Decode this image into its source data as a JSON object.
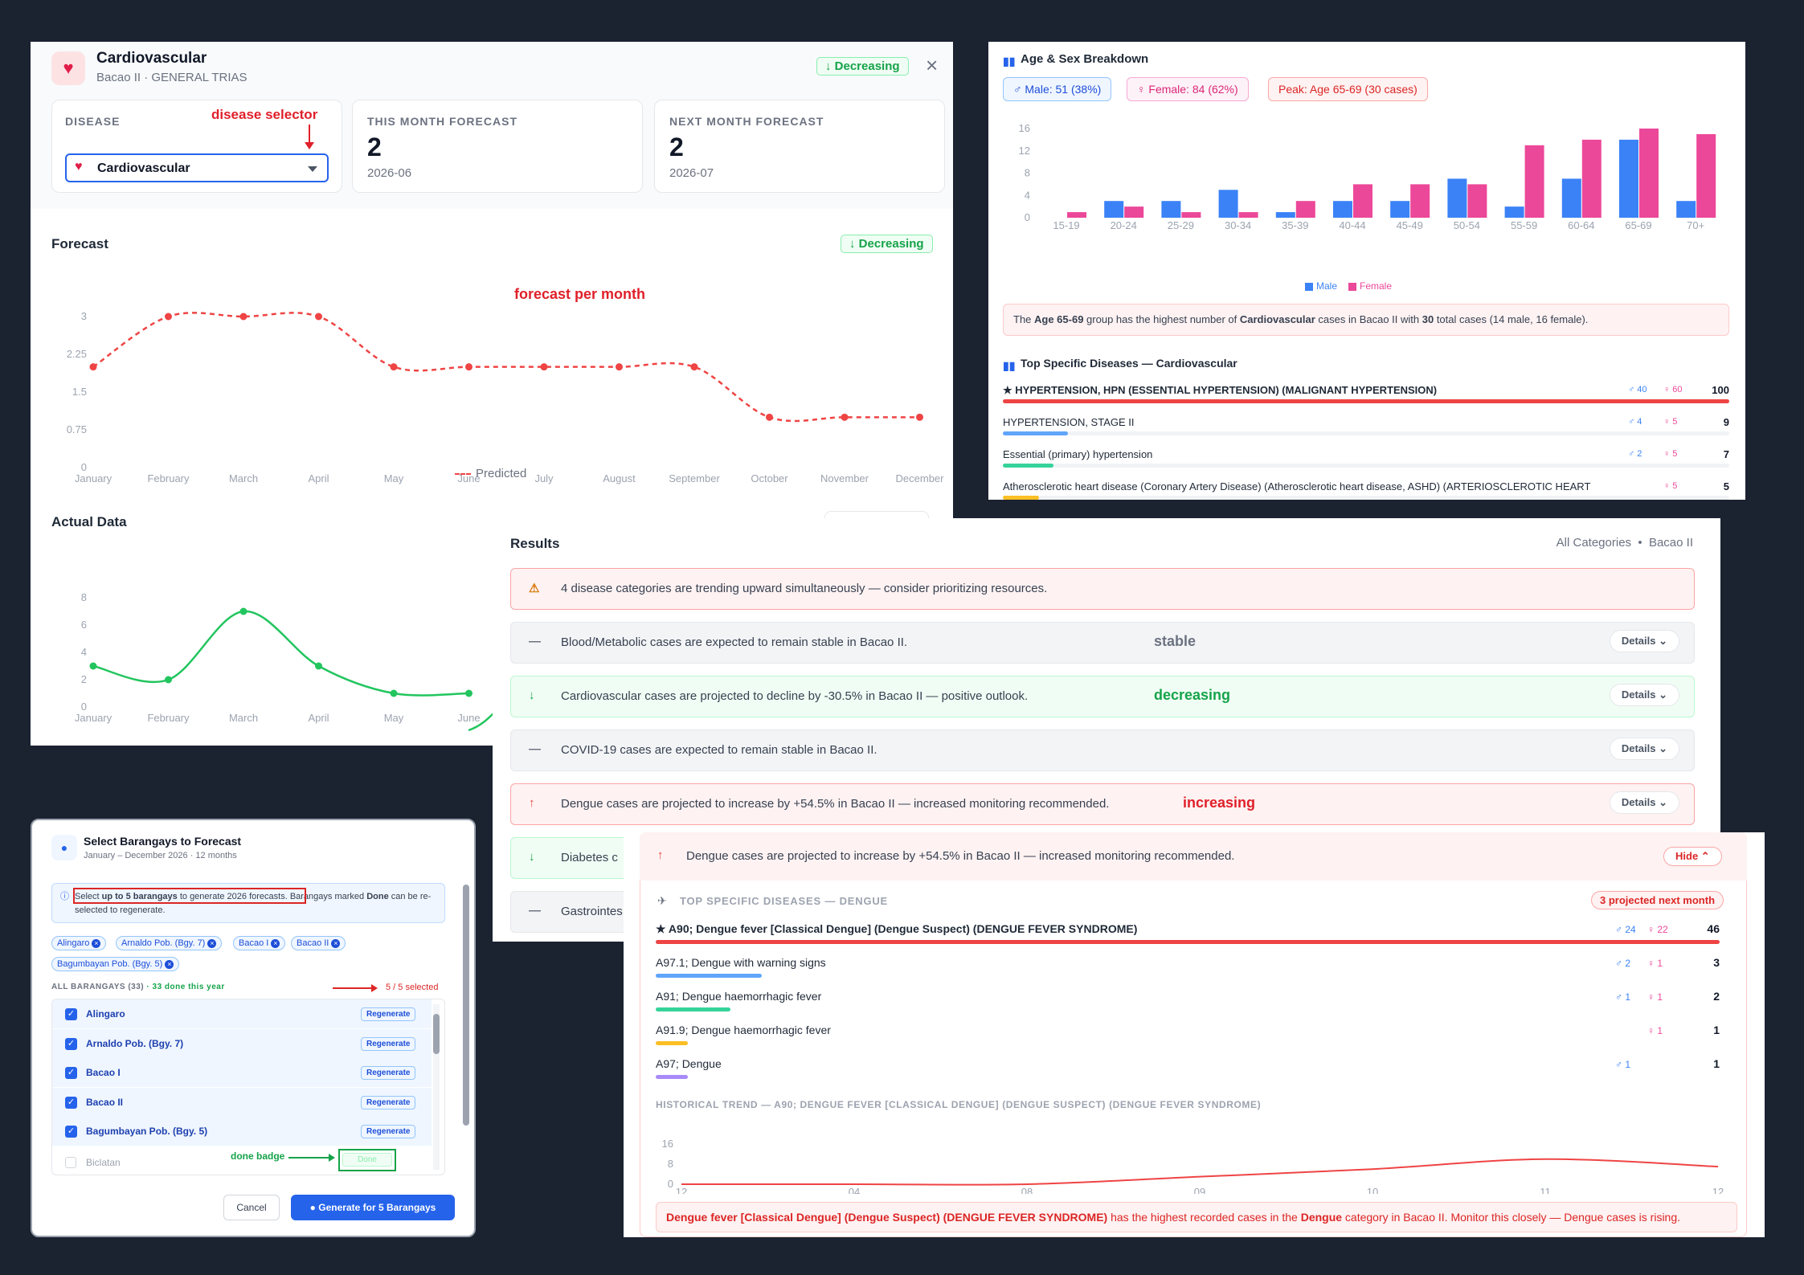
{
  "panel1": {
    "title": "Cardiovascular",
    "subtitle": "Bacao II · GENERAL TRIAS",
    "trend_badge": "↓ Decreasing",
    "close": "×",
    "disease_caption": "DISEASE",
    "disease_annotation": "disease selector",
    "disease_value": "Cardiovascular",
    "this_month_caption": "THIS MONTH FORECAST",
    "this_month_value": "2",
    "this_month_date": "2026-06",
    "next_month_caption": "NEXT MONTH FORECAST",
    "next_month_value": "2",
    "next_month_date": "2026-07",
    "forecast_title": "Forecast",
    "forecast_badge": "↓ Decreasing",
    "forecast_annotation": "forecast per month",
    "legend_predicted": "Predicted",
    "actual_title": "Actual Data"
  },
  "chart_data": [
    {
      "type": "line",
      "title": "Forecast",
      "categories": [
        "January",
        "February",
        "March",
        "April",
        "May",
        "June",
        "July",
        "August",
        "September",
        "October",
        "November",
        "December"
      ],
      "series": [
        {
          "name": "Predicted",
          "values": [
            2,
            3,
            3,
            3,
            2,
            2,
            2,
            2,
            2,
            1,
            1,
            1
          ]
        }
      ],
      "yticks": [
        "0",
        "0.75",
        "1.5",
        "2.25",
        "3"
      ],
      "ylim": [
        0,
        3
      ],
      "legend": "bottom"
    },
    {
      "type": "line",
      "title": "Actual Data",
      "categories": [
        "January",
        "February",
        "March",
        "April",
        "May",
        "June"
      ],
      "series": [
        {
          "values": [
            3,
            2,
            7,
            3,
            1,
            1
          ]
        }
      ],
      "yticks": [
        "0",
        "2",
        "4",
        "6",
        "8"
      ],
      "ylim": [
        0,
        8
      ]
    },
    {
      "type": "bar",
      "title": "Age & Sex Breakdown",
      "categories": [
        "15-19",
        "20-24",
        "25-29",
        "30-34",
        "35-39",
        "40-44",
        "45-49",
        "50-54",
        "55-59",
        "60-64",
        "65-69",
        "70+"
      ],
      "series": [
        {
          "name": "Male",
          "values": [
            0,
            3,
            3,
            5,
            1,
            3,
            3,
            7,
            2,
            7,
            14,
            3
          ]
        },
        {
          "name": "Female",
          "values": [
            1,
            2,
            1,
            1,
            3,
            6,
            6,
            6,
            13,
            14,
            16,
            15
          ]
        }
      ],
      "yticks": [
        "0",
        "4",
        "8",
        "12",
        "16"
      ],
      "ylim": [
        0,
        16
      ],
      "legend": "bottom"
    },
    {
      "type": "line",
      "title": "HISTORICAL TREND — A90; DENGUE FEVER [CLASSICAL DENGUE] (DENGUE SUSPECT) (DENGUE FEVER SYNDROME)",
      "x": [
        "12",
        "04",
        "08",
        "09",
        "10",
        "11",
        "12"
      ],
      "series": [
        {
          "values": [
            0,
            0,
            0,
            3,
            6,
            10,
            7
          ]
        }
      ],
      "yticks": [
        "0",
        "8",
        "16"
      ],
      "ylim": [
        0,
        16
      ]
    }
  ],
  "panel2": {
    "title": "Age & Sex Breakdown",
    "chip_male": "♂ Male: 51 (38%)",
    "chip_female": "♀ Female: 84 (62%)",
    "chip_peak": "Peak: Age 65-69 (30 cases)",
    "legend_male": "Male",
    "legend_female": "Female",
    "summary_1": "The ",
    "summary_age": "Age 65-69",
    "summary_2": " group has the highest number of ",
    "summary_dis": "Cardiovascular",
    "summary_3": " cases in Bacao II with ",
    "summary_n": "30",
    "summary_4": " total cases (14 male, 16 female).",
    "top_title": "Top Specific Diseases — Cardiovascular",
    "diseases": [
      {
        "name": "★ HYPERTENSION, HPN (ESSENTIAL HYPERTENSION) (MALIGNANT HYPERTENSION)",
        "m": "♂ 40",
        "f": "♀ 60",
        "total": "100",
        "pct": 1.0,
        "color": "#ef4444"
      },
      {
        "name": "HYPERTENSION, STAGE II",
        "m": "♂ 4",
        "f": "♀ 5",
        "total": "9",
        "pct": 0.09,
        "color": "#60a5fa"
      },
      {
        "name": "Essential (primary) hypertension",
        "m": "♂ 2",
        "f": "♀ 5",
        "total": "7",
        "pct": 0.07,
        "color": "#34d399"
      },
      {
        "name": "Atherosclerotic heart disease (Coronary Artery Disease) (Atherosclerotic heart disease, ASHD) (ARTERIOSCLEROTIC HEART",
        "m": "",
        "f": "♀ 5",
        "total": "5",
        "pct": 0.05,
        "color": "#fbbf24"
      }
    ]
  },
  "panel3": {
    "title": "Results",
    "filter": "All Categories  •  Bacao II",
    "rows": [
      {
        "icon": "⚠",
        "text": "4 disease categories are trending upward simultaneously — consider prioritizing resources.",
        "annot": "",
        "details": ""
      },
      {
        "icon": "—",
        "text": "Blood/Metabolic cases are expected to remain stable in Bacao II.",
        "annot": "stable",
        "details": "Details ⌄"
      },
      {
        "icon": "↓",
        "text": "Cardiovascular cases are projected to decline by -30.5% in Bacao II — positive outlook.",
        "annot": "decreasing",
        "details": "Details ⌄"
      },
      {
        "icon": "—",
        "text": "COVID-19 cases are expected to remain stable in Bacao II.",
        "annot": "",
        "details": "Details ⌄"
      },
      {
        "icon": "↑",
        "text": "Dengue cases are projected to increase by +54.5% in Bacao II — increased monitoring recommended.",
        "annot": "increasing",
        "details": "Details ⌄"
      },
      {
        "icon": "↓",
        "text": "Diabetes c",
        "annot": "",
        "details": ""
      },
      {
        "icon": "—",
        "text": "Gastrointes",
        "annot": "",
        "details": ""
      }
    ]
  },
  "panel4": {
    "title": "Select Barangays to Forecast",
    "subtitle": "January – December 2026 · 12 months",
    "info_1": "Select ",
    "info_bold": "up to 5 barangays",
    "info_2": " to generate 2026 forecasts. Barangays marked ",
    "info_done": "Done",
    "info_3": " can be re-selected to regenerate.",
    "tags": [
      "Alingaro",
      "Arnaldo Pob. (Bgy. 7)",
      "Bacao I",
      "Bacao II",
      "Bagumbayan Pob. (Bgy. 5)"
    ],
    "all_label": "ALL BARANGAYS (33)",
    "done_label": "· 33 done this year",
    "selected": "5 / 5 selected",
    "list": [
      {
        "name": "Alingaro",
        "btn": "Regenerate"
      },
      {
        "name": "Arnaldo Pob. (Bgy. 7)",
        "btn": "Regenerate"
      },
      {
        "name": "Bacao I",
        "btn": "Regenerate"
      },
      {
        "name": "Bacao II",
        "btn": "Regenerate"
      },
      {
        "name": "Bagumbayan Pob. (Bgy. 5)",
        "btn": "Regenerate"
      }
    ],
    "disabled_name": "Biclatan",
    "done_annotation": "done badge",
    "done_btn": "Done",
    "cancel": "Cancel",
    "generate": "Generate for 5 Barangays"
  },
  "panel5": {
    "header": "Dengue cases are projected to increase by +54.5% in Bacao II — increased monitoring recommended.",
    "hide": "Hide ⌃",
    "top_caption": "TOP SPECIFIC DISEASES — DENGUE",
    "projected": "3 projected next month",
    "diseases": [
      {
        "name": "★ A90; Dengue fever [Classical Dengue] (Dengue Suspect) (DENGUE FEVER SYNDROME)",
        "m": "♂ 24",
        "f": "♀ 22",
        "total": "46",
        "pct": 1.0,
        "color": "#ef4444"
      },
      {
        "name": "A97.1; Dengue with warning signs",
        "m": "♂ 2",
        "f": "♀ 1",
        "total": "3",
        "pct": 0.1,
        "color": "#60a5fa"
      },
      {
        "name": "A91; Dengue haemorrhagic fever",
        "m": "♂ 1",
        "f": "♀ 1",
        "total": "2",
        "pct": 0.07,
        "color": "#34d399"
      },
      {
        "name": "A91.9; Dengue haemorrhagic fever",
        "m": "",
        "f": "♀ 1",
        "total": "1",
        "pct": 0.03,
        "color": "#fbbf24"
      },
      {
        "name": "A97; Dengue",
        "m": "♂ 1",
        "f": "",
        "total": "1",
        "pct": 0.03,
        "color": "#a78bfa"
      }
    ],
    "trend_caption": "HISTORICAL TREND — A90; DENGUE FEVER [CLASSICAL DENGUE] (DENGUE SUSPECT) (DENGUE FEVER SYNDROME)",
    "footer_1": "Dengue fever [Classical Dengue] (Dengue Suspect) (DENGUE FEVER SYNDROME)",
    "footer_2": " has the highest recorded cases in the ",
    "footer_3": "Dengue",
    "footer_4": " category in Bacao II. Monitor this closely — Dengue cases is rising."
  }
}
